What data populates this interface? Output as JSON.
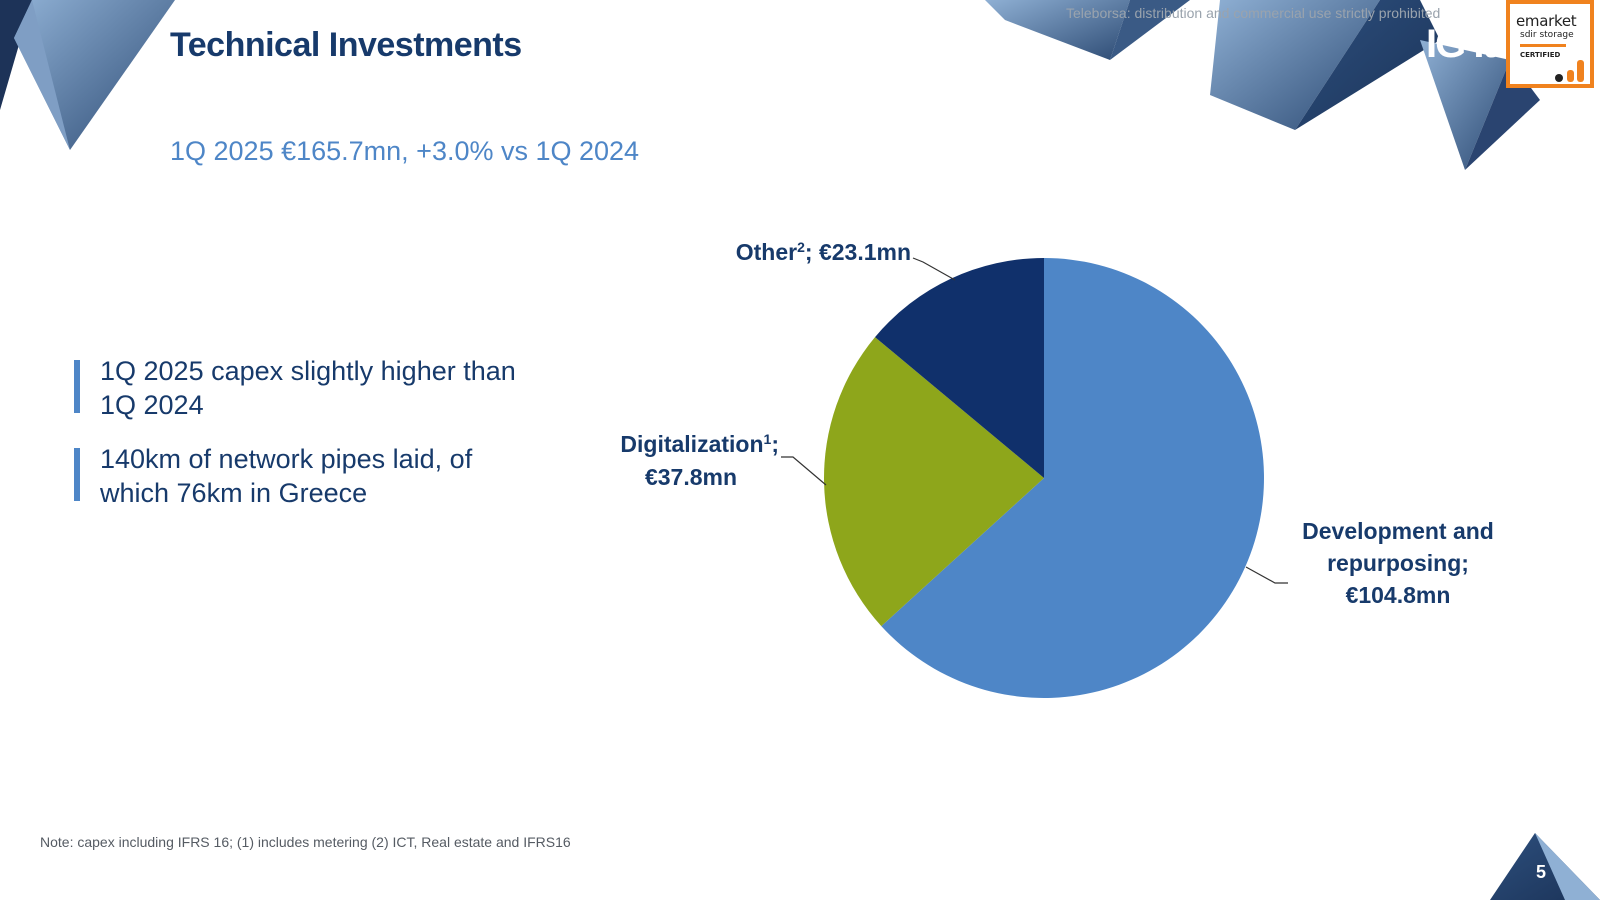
{
  "slide": {
    "title": "Technical Investments",
    "subtitle": "1Q 2025 €165.7mn, +3.0% vs 1Q 2024",
    "watermark": "Teleborsa: distribution and commercial use strictly prohibited",
    "bullets": [
      "1Q 2025 capex slightly higher than 1Q 2024",
      "140km of network pipes laid, of which 76km in Greece"
    ],
    "note": "Note: capex including IFRS 16; (1) includes metering (2) ICT, Real estate and IFRS16",
    "page_number": "5",
    "logo_text": "IG Ita",
    "badge": {
      "line1": "emarket",
      "line2": "sdir storage",
      "line3": "CERTIFIED"
    }
  },
  "colors": {
    "title": "#173a6b",
    "subtitle": "#4e86c7",
    "development": "#4e86c7",
    "digitalization": "#8ea61b",
    "other": "#10306b",
    "badge_border": "#f0821e"
  },
  "chart_data": {
    "type": "pie",
    "total_label": "€165.7mn",
    "slices": [
      {
        "name": "Development and repurposing",
        "value": 104.8,
        "label_lines": [
          "Development and",
          "repurposing;",
          "€104.8mn"
        ],
        "color": "#4e86c7"
      },
      {
        "name": "Digitalization",
        "sup": "1",
        "value": 37.8,
        "label_lines": [
          "Digitalization",
          ";",
          "€37.8mn"
        ],
        "color": "#8ea61b"
      },
      {
        "name": "Other",
        "sup": "2",
        "value": 23.1,
        "label_lines": [
          "Other",
          "; €23.1mn"
        ],
        "color": "#10306b"
      }
    ],
    "start": "12 o'clock",
    "direction": "clockwise"
  }
}
